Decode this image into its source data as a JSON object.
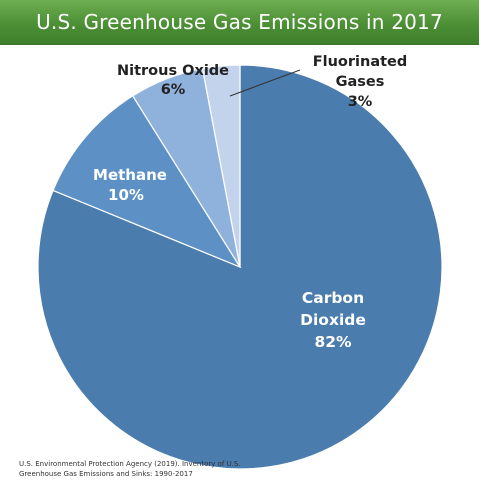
{
  "chart_data": {
    "type": "pie",
    "title": "U.S. Greenhouse Gas Emissions in 2017",
    "slices": [
      {
        "label": "Carbon Dioxide",
        "value": 82,
        "value_label": "82%",
        "color": "#4a7cad"
      },
      {
        "label": "Methane",
        "value": 10,
        "value_label": "10%",
        "color": "#5d91c6"
      },
      {
        "label": "Nitrous Oxide",
        "value": 6,
        "value_label": "6%",
        "color": "#8fb2dc"
      },
      {
        "label": "Fluorinated Gases",
        "value": 3,
        "value_label": "3%",
        "color": "#c3d3ec"
      }
    ],
    "legend": "none",
    "source": [
      "U.S. Environmental Protection Agency (2019). Inventory of U.S.",
      "Greenhouse Gas Emissions and Sinks: 1990-2017"
    ]
  }
}
